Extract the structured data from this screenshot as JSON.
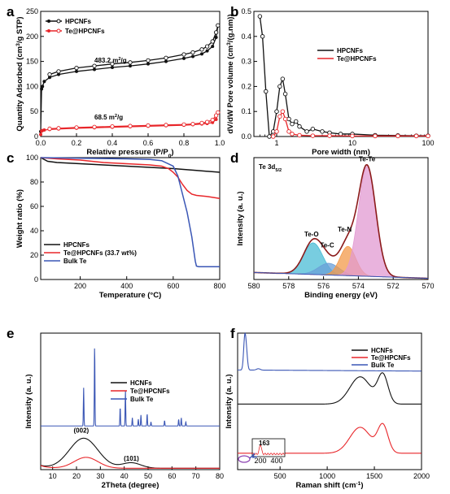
{
  "colors": {
    "black": "#111111",
    "red": "#e8262a",
    "blue": "#3a56b5",
    "cyan": "#4bbcd6",
    "lightblue": "#6a9fd8",
    "orange": "#f39a4a",
    "pink": "#e29ad2",
    "envelope": "#8b1a1a"
  },
  "chart_data": [
    {
      "id": "a",
      "type": "line",
      "letter": "a",
      "xlabel": "Relative pressure (P/P₀)",
      "ylabel": "Quantity Adsorbed (cm³/g STP)",
      "xlim": [
        0,
        1
      ],
      "ylim": [
        0,
        250
      ],
      "xticks": [
        0.0,
        0.2,
        0.4,
        0.6,
        0.8,
        1.0
      ],
      "xtick_labels": [
        "0.0",
        "0.2",
        "0.4",
        "0.6",
        "0.8",
        "1.0"
      ],
      "yticks": [
        0,
        50,
        100,
        150,
        200,
        250
      ],
      "ytick_labels": [
        "0",
        "50",
        "100",
        "150",
        "200",
        "250"
      ],
      "legend": [
        "HPCNFs",
        "Te@HPCNFs"
      ],
      "annotations": [
        {
          "text": "483.2 m²/g",
          "x": 0.3,
          "y": 148
        },
        {
          "text": "68.5 m²/g",
          "x": 0.3,
          "y": 34
        }
      ],
      "series": [
        {
          "name": "HPCNFs",
          "color": "#111111",
          "marker": "filled",
          "x": [
            0.0,
            0.005,
            0.01,
            0.02,
            0.05,
            0.1,
            0.2,
            0.3,
            0.4,
            0.5,
            0.6,
            0.7,
            0.8,
            0.85,
            0.9,
            0.93,
            0.96,
            0.98,
            0.99
          ],
          "y": [
            10,
            95,
            100,
            110,
            118,
            124,
            130,
            134,
            138,
            141,
            145,
            150,
            156,
            160,
            165,
            171,
            180,
            198,
            222
          ]
        },
        {
          "name": "HPCNFs desorption",
          "color": "#111111",
          "marker": "open",
          "x": [
            0.99,
            0.98,
            0.96,
            0.93,
            0.9,
            0.85,
            0.8,
            0.7,
            0.6,
            0.5,
            0.4,
            0.3,
            0.2,
            0.1,
            0.05
          ],
          "y": [
            222,
            208,
            190,
            180,
            174,
            168,
            164,
            157,
            152,
            148,
            145,
            141,
            137,
            130,
            124
          ]
        },
        {
          "name": "Te@HPCNFs",
          "color": "#e8262a",
          "marker": "filled",
          "x": [
            0.0,
            0.005,
            0.01,
            0.02,
            0.05,
            0.1,
            0.2,
            0.3,
            0.4,
            0.5,
            0.6,
            0.7,
            0.8,
            0.85,
            0.9,
            0.93,
            0.96,
            0.98,
            0.99
          ],
          "y": [
            4,
            11,
            12,
            13,
            14,
            15,
            16.5,
            17.5,
            18.5,
            19.5,
            20.5,
            21.5,
            22.5,
            23.5,
            25,
            26,
            28,
            34,
            48
          ]
        },
        {
          "name": "Te@HPCNFs desorption",
          "color": "#e8262a",
          "marker": "open",
          "x": [
            0.99,
            0.98,
            0.96,
            0.93,
            0.9,
            0.85,
            0.8,
            0.7,
            0.6,
            0.5,
            0.4,
            0.3,
            0.2,
            0.1,
            0.05
          ],
          "y": [
            48,
            42,
            33,
            29,
            27,
            25,
            24,
            23,
            22,
            21,
            20,
            19,
            18,
            16.5,
            15.5
          ]
        }
      ]
    },
    {
      "id": "b",
      "type": "line",
      "letter": "b",
      "xscale": "log",
      "xlabel": "Pore width (nm)",
      "ylabel": "dV/dW Pore volume (cm³/(g.nm))",
      "xlim": [
        0.5,
        100
      ],
      "ylim": [
        0,
        0.5
      ],
      "xticks": [
        1,
        10,
        100
      ],
      "xtick_labels": [
        "1",
        "10",
        "100"
      ],
      "yticks": [
        0.0,
        0.1,
        0.2,
        0.3,
        0.4,
        0.5
      ],
      "ytick_labels": [
        "0.0",
        "0.1",
        "0.2",
        "0.3",
        "0.4",
        "0.5"
      ],
      "legend": [
        "HPCNFs",
        "Te@HPCNFs"
      ],
      "series": [
        {
          "name": "HPCNFs",
          "color": "#111111",
          "x": [
            0.6,
            0.65,
            0.72,
            0.8,
            0.9,
            1.0,
            1.1,
            1.2,
            1.3,
            1.45,
            1.6,
            1.8,
            2.0,
            2.5,
            3,
            4,
            5,
            7,
            10,
            20,
            40,
            70,
            100
          ],
          "y": [
            0.48,
            0.4,
            0.18,
            0.0,
            0.02,
            0.1,
            0.2,
            0.23,
            0.17,
            0.07,
            0.05,
            0.06,
            0.04,
            0.02,
            0.03,
            0.02,
            0.015,
            0.01,
            0.01,
            0.005,
            0.004,
            0.003,
            0.003
          ]
        },
        {
          "name": "Te@HPCNFs",
          "color": "#e8262a",
          "x": [
            0.9,
            1.0,
            1.1,
            1.2,
            1.3,
            1.45,
            1.6,
            2.0,
            3,
            5,
            10,
            20,
            40,
            70,
            100
          ],
          "y": [
            0.0,
            0.02,
            0.08,
            0.1,
            0.07,
            0.02,
            0.01,
            0.005,
            0.003,
            0.003,
            0.002,
            0.002,
            0.002,
            0.002,
            0.002
          ]
        }
      ]
    },
    {
      "id": "c",
      "type": "line",
      "letter": "c",
      "xlabel": "Temperature (°C)",
      "ylabel": "Weight ratio (%)",
      "xlim": [
        30,
        800
      ],
      "ylim": [
        0,
        100
      ],
      "xticks": [
        200,
        400,
        600,
        800
      ],
      "xtick_labels": [
        "200",
        "400",
        "600",
        "800"
      ],
      "yticks": [
        0,
        20,
        40,
        60,
        80,
        100
      ],
      "ytick_labels": [
        "0",
        "20",
        "40",
        "60",
        "80",
        "100"
      ],
      "legend": [
        "HPCNFs",
        "Te@HPCNFs (33.7 wt%)",
        "Bulk Te"
      ],
      "series": [
        {
          "name": "HPCNFs",
          "color": "#111111",
          "x": [
            30,
            60,
            100,
            200,
            300,
            400,
            500,
            600,
            700,
            800
          ],
          "y": [
            100,
            97,
            96,
            95,
            94,
            93,
            92,
            91,
            89.5,
            88
          ]
        },
        {
          "name": "Te@HPCNFs (33.7 wt%)",
          "color": "#e8262a",
          "x": [
            30,
            100,
            200,
            300,
            400,
            500,
            550,
            580,
            600,
            620,
            640,
            660,
            680,
            700,
            750,
            800
          ],
          "y": [
            100,
            99,
            98,
            96,
            95,
            94,
            93,
            91,
            88,
            84,
            78,
            73,
            70,
            69,
            68,
            66.5
          ]
        },
        {
          "name": "Bulk Te",
          "color": "#3a56b5",
          "x": [
            30,
            200,
            400,
            500,
            550,
            600,
            620,
            640,
            660,
            680,
            695,
            700,
            710,
            800
          ],
          "y": [
            100,
            99.5,
            99,
            98.5,
            97.5,
            93,
            85,
            70,
            55,
            35,
            15,
            11,
            10.5,
            10.5
          ]
        }
      ]
    },
    {
      "id": "d",
      "type": "area",
      "letter": "d",
      "xreversed": true,
      "xlabel": "Binding energy (eV)",
      "ylabel": "Intensity (a. u.)",
      "title": "Te 3d₅/₂",
      "xlim": [
        580,
        570
      ],
      "xticks": [
        580,
        578,
        576,
        574,
        572,
        570
      ],
      "xtick_labels": [
        "580",
        "578",
        "576",
        "574",
        "572",
        "570"
      ],
      "peaks": [
        {
          "name": "Te-O",
          "center": 576.6,
          "height": 0.27,
          "width": 0.55,
          "color": "#4bbcd6"
        },
        {
          "name": "Te-C",
          "center": 575.7,
          "height": 0.1,
          "width": 0.6,
          "color": "#6a9fd8"
        },
        {
          "name": "Te-N",
          "center": 574.6,
          "height": 0.25,
          "width": 0.45,
          "color": "#f39a4a"
        },
        {
          "name": "Te-Te",
          "center": 573.5,
          "height": 0.94,
          "width": 0.5,
          "color": "#e29ad2"
        }
      ],
      "baseline": {
        "left": 0.06,
        "right": 0.01
      }
    },
    {
      "id": "e",
      "type": "line",
      "letter": "e",
      "xlabel": "2Theta (degree)",
      "ylabel": "Intensity (a. u.)",
      "xlim": [
        5,
        80
      ],
      "xticks": [
        10,
        20,
        30,
        40,
        50,
        60,
        70,
        80
      ],
      "xtick_labels": [
        "10",
        "20",
        "30",
        "40",
        "50",
        "60",
        "70",
        "80"
      ],
      "legend": [
        "HCNFs",
        "Te@HPCNFs",
        "Bulk Te"
      ],
      "annotations": [
        {
          "text": "(002)",
          "x": 22,
          "y": 0.27
        },
        {
          "text": "(101)",
          "x": 43,
          "y": 0.065
        }
      ],
      "series": [
        {
          "name": "HCNFs",
          "color": "#111111",
          "offset": 0.0,
          "broad": [
            {
              "c": 23,
              "h": 0.22,
              "w": 6
            },
            {
              "c": 43,
              "h": 0.04,
              "w": 4
            }
          ]
        },
        {
          "name": "Te@HPCNFs",
          "color": "#e8262a",
          "offset": 0.0,
          "broad": [
            {
              "c": 24,
              "h": 0.08,
              "w": 5
            }
          ]
        },
        {
          "name": "Bulk Te",
          "color": "#3a56b5",
          "offset": 0.31,
          "peaks": [
            {
              "c": 23.0,
              "h": 0.28
            },
            {
              "c": 27.6,
              "h": 0.6
            },
            {
              "c": 38.3,
              "h": 0.14
            },
            {
              "c": 40.5,
              "h": 0.26
            },
            {
              "c": 43.4,
              "h": 0.06
            },
            {
              "c": 45.9,
              "h": 0.05
            },
            {
              "c": 47.0,
              "h": 0.08
            },
            {
              "c": 49.6,
              "h": 0.09
            },
            {
              "c": 51.2,
              "h": 0.03
            },
            {
              "c": 56.9,
              "h": 0.04
            },
            {
              "c": 62.8,
              "h": 0.05
            },
            {
              "c": 63.9,
              "h": 0.06
            },
            {
              "c": 65.8,
              "h": 0.03
            }
          ]
        }
      ]
    },
    {
      "id": "f",
      "type": "line",
      "letter": "f",
      "xlabel": "Raman shift (cm⁻¹)",
      "ylabel": "Intensity (a. u.)",
      "xlim": [
        50,
        2000
      ],
      "xticks": [
        500,
        1000,
        1500,
        2000
      ],
      "xtick_labels": [
        "500",
        "1000",
        "1500",
        "2000"
      ],
      "legend": [
        "HCNFs",
        "Te@HPCNFs",
        "Bulk Te"
      ],
      "inset": {
        "peak_label": "163",
        "xtick_labels": [
          "200",
          "400"
        ]
      },
      "series": [
        {
          "name": "HCNFs",
          "color": "#111111",
          "offset": 0.48,
          "bands": [
            {
              "c": 1350,
              "h": 0.2,
              "w": 110
            },
            {
              "c": 1590,
              "h": 0.21,
              "w": 55
            }
          ]
        },
        {
          "name": "Te@HPCNFs",
          "color": "#e8262a",
          "offset": 0.12,
          "bands": [
            {
              "c": 1350,
              "h": 0.19,
              "w": 110
            },
            {
              "c": 1590,
              "h": 0.2,
              "w": 55
            }
          ]
        },
        {
          "name": "Bulk Te",
          "color": "#3a56b5",
          "offset": 0.73,
          "bands": [
            {
              "c": 125,
              "h": 0.22,
              "w": 12
            },
            {
              "c": 143,
              "h": 0.12,
              "w": 12
            },
            {
              "c": 270,
              "h": 0.01,
              "w": 20
            }
          ]
        }
      ]
    }
  ]
}
